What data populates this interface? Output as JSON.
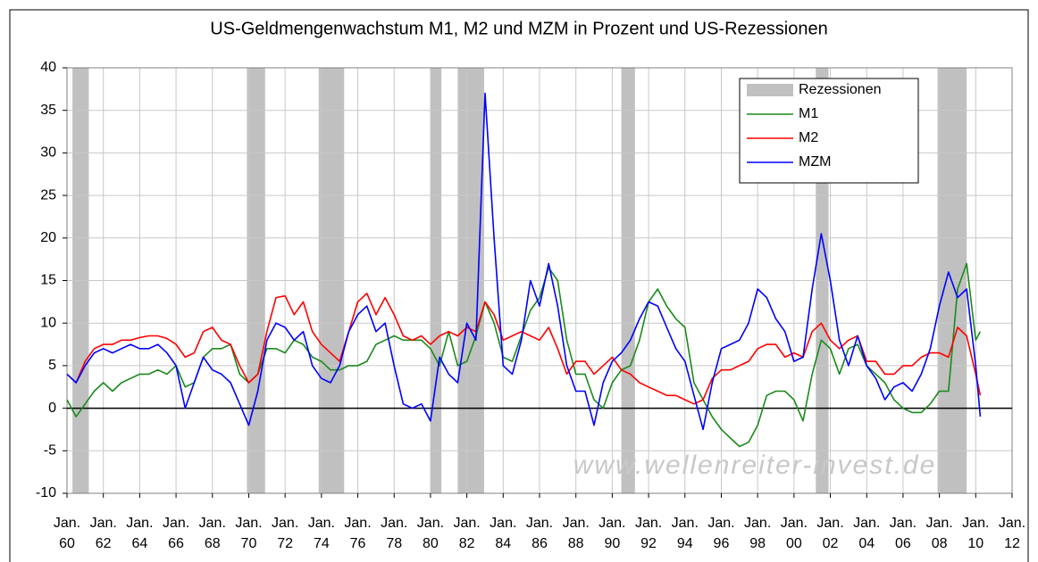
{
  "chart_data": {
    "type": "line",
    "title": "US-Geldmengenwachstum M1, M2 und MZM in Prozent und US-Rezessionen",
    "watermark": "www.wellenreiter-invest.de",
    "legend": "upper right",
    "grid": true,
    "xlim": [
      1960,
      2012
    ],
    "xticks": [
      {
        "value": 1960,
        "label": "Jan. 60"
      },
      {
        "value": 1962,
        "label": "Jan. 62"
      },
      {
        "value": 1964,
        "label": "Jan. 64"
      },
      {
        "value": 1966,
        "label": "Jan. 66"
      },
      {
        "value": 1968,
        "label": "Jan. 68"
      },
      {
        "value": 1970,
        "label": "Jan. 70"
      },
      {
        "value": 1972,
        "label": "Jan. 72"
      },
      {
        "value": 1974,
        "label": "Jan. 74"
      },
      {
        "value": 1976,
        "label": "Jan. 76"
      },
      {
        "value": 1978,
        "label": "Jan. 78"
      },
      {
        "value": 1980,
        "label": "Jan. 80"
      },
      {
        "value": 1982,
        "label": "Jan. 82"
      },
      {
        "value": 1984,
        "label": "Jan. 84"
      },
      {
        "value": 1986,
        "label": "Jan. 86"
      },
      {
        "value": 1988,
        "label": "Jan. 88"
      },
      {
        "value": 1990,
        "label": "Jan. 90"
      },
      {
        "value": 1992,
        "label": "Jan. 92"
      },
      {
        "value": 1994,
        "label": "Jan. 94"
      },
      {
        "value": 1996,
        "label": "Jan. 96"
      },
      {
        "value": 1998,
        "label": "Jan. 98"
      },
      {
        "value": 2000,
        "label": "Jan. 00"
      },
      {
        "value": 2002,
        "label": "Jan. 02"
      },
      {
        "value": 2004,
        "label": "Jan. 04"
      },
      {
        "value": 2006,
        "label": "Jan. 06"
      },
      {
        "value": 2008,
        "label": "Jan. 08"
      },
      {
        "value": 2010,
        "label": "Jan. 10"
      },
      {
        "value": 2012,
        "label": "Jan. 12"
      }
    ],
    "ylim": [
      -10,
      40
    ],
    "yticks": [
      -10,
      -5,
      0,
      5,
      10,
      15,
      20,
      25,
      30,
      35,
      40
    ],
    "recessions": {
      "name": "Rezessionen",
      "color": "#c0c0c0",
      "ranges": [
        [
          1960.3,
          1961.2
        ],
        [
          1969.9,
          1970.9
        ],
        [
          1973.85,
          1975.25
        ],
        [
          1980.0,
          1980.6
        ],
        [
          1981.5,
          1982.95
        ],
        [
          1990.5,
          1991.25
        ],
        [
          2001.2,
          2001.9
        ],
        [
          2007.9,
          2009.5
        ]
      ]
    },
    "x": [
      1960,
      1960.5,
      1961,
      1961.5,
      1962,
      1962.5,
      1963,
      1963.5,
      1964,
      1964.5,
      1965,
      1965.5,
      1966,
      1966.5,
      1967,
      1967.5,
      1968,
      1968.5,
      1969,
      1969.5,
      1970,
      1970.5,
      1971,
      1971.5,
      1972,
      1972.5,
      1973,
      1973.5,
      1974,
      1974.5,
      1975,
      1975.5,
      1976,
      1976.5,
      1977,
      1977.5,
      1978,
      1978.5,
      1979,
      1979.5,
      1980,
      1980.5,
      1981,
      1981.5,
      1982,
      1982.5,
      1983,
      1983.5,
      1984,
      1984.5,
      1985,
      1985.5,
      1986,
      1986.5,
      1987,
      1987.5,
      1988,
      1988.5,
      1989,
      1989.5,
      1990,
      1990.5,
      1991,
      1991.5,
      1992,
      1992.5,
      1993,
      1993.5,
      1994,
      1994.5,
      1995,
      1995.5,
      1996,
      1996.5,
      1997,
      1997.5,
      1998,
      1998.5,
      1999,
      1999.5,
      2000,
      2000.5,
      2001,
      2001.5,
      2002,
      2002.5,
      2003,
      2003.5,
      2004,
      2004.5,
      2005,
      2005.5,
      2006,
      2006.5,
      2007,
      2007.5,
      2008,
      2008.5,
      2009,
      2009.5,
      2010,
      2010.25
    ],
    "series": [
      {
        "name": "M1",
        "color": "#1a8a1a",
        "values": [
          1,
          -1,
          0.5,
          2,
          3,
          2,
          3,
          3.5,
          4,
          4,
          4.5,
          4,
          5,
          2.5,
          3,
          6,
          7,
          7,
          7.5,
          4,
          3,
          4,
          7,
          7,
          6.5,
          8,
          7.5,
          6,
          5.5,
          4.5,
          4.5,
          5,
          5,
          5.5,
          7.5,
          8,
          8.5,
          8,
          8,
          8,
          7,
          5,
          9,
          5,
          5.5,
          8.5,
          12.5,
          10,
          6,
          5.5,
          8.5,
          11.5,
          13,
          16.5,
          15,
          8,
          4,
          4,
          1,
          0,
          3,
          4.5,
          5,
          8,
          12.5,
          14,
          12,
          10.5,
          9.5,
          3,
          1,
          -1,
          -2.5,
          -3.5,
          -4.5,
          -4,
          -2,
          1.5,
          2,
          2,
          1,
          -1.5,
          4,
          8,
          7,
          4,
          7,
          7.5,
          5,
          4,
          3,
          1,
          0,
          -0.5,
          -0.5,
          0.5,
          2,
          2,
          14,
          17,
          8,
          9
        ]
      },
      {
        "name": "M2",
        "color": "#ff0000",
        "values": [
          4,
          3,
          5.5,
          7,
          7.5,
          7.5,
          8,
          8,
          8.3,
          8.5,
          8.5,
          8.2,
          7.5,
          6,
          6.5,
          9,
          9.5,
          8,
          7.5,
          5,
          3,
          4,
          9,
          13,
          13.2,
          11,
          12.5,
          9,
          7.5,
          6.5,
          5.5,
          9,
          12.5,
          13.5,
          11,
          13,
          11,
          8.5,
          8,
          8.5,
          7.5,
          8.5,
          9,
          8.5,
          9.5,
          9,
          12.5,
          11,
          8,
          8.5,
          9,
          8.5,
          8,
          9.5,
          7,
          4,
          5.5,
          5.5,
          4,
          5,
          6,
          4.5,
          4,
          3,
          2.5,
          2,
          1.5,
          1.5,
          1,
          0.5,
          1,
          3.5,
          4.5,
          4.5,
          5,
          5.5,
          7,
          7.5,
          7.5,
          6,
          6.5,
          6,
          9,
          10,
          8,
          7,
          8,
          8.5,
          5.5,
          5.5,
          4,
          4,
          5,
          5,
          6,
          6.5,
          6.5,
          6,
          9.5,
          8.5,
          4,
          1.5
        ]
      },
      {
        "name": "MZM",
        "color": "#0000ff",
        "values": [
          4,
          3,
          5,
          6.5,
          7,
          6.5,
          7,
          7.5,
          7,
          7,
          7.5,
          6.5,
          5,
          0,
          3,
          6,
          4.5,
          4,
          3,
          0.5,
          -2,
          2,
          8,
          10,
          9.5,
          8,
          9,
          5,
          3.5,
          3,
          5,
          9,
          11,
          12,
          9,
          10,
          5,
          0.5,
          0,
          0.5,
          -1.5,
          6,
          4,
          3,
          10,
          8,
          37,
          20,
          5,
          4,
          8,
          15,
          12,
          17,
          12,
          5,
          2,
          2,
          -2,
          3,
          5.5,
          6.5,
          8,
          10.5,
          12.5,
          12,
          9.5,
          7,
          5.5,
          1.5,
          -2.5,
          3,
          7,
          7.5,
          8,
          10,
          14,
          13,
          10.5,
          9,
          5.5,
          6,
          14,
          20.5,
          15,
          8,
          5,
          8.5,
          5,
          3.5,
          1,
          2.5,
          3,
          2,
          4,
          7,
          12,
          16,
          13,
          14,
          5,
          -1
        ]
      }
    ]
  }
}
